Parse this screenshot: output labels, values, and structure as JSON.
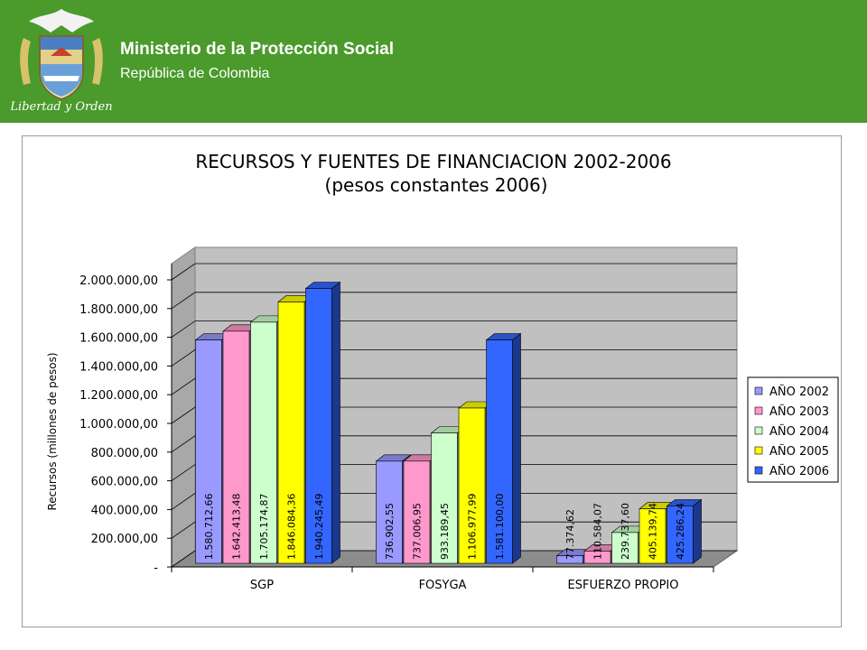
{
  "header": {
    "ministry": "Ministerio de la Protección Social",
    "republic": "República de Colombia",
    "motto": "Libertad y Orden"
  },
  "colors": {
    "header_bg": "#4a9a2c",
    "series": [
      "#9999ff",
      "#ff99cc",
      "#ccffcc",
      "#ffff00",
      "#3366ff"
    ]
  },
  "chart_data": {
    "type": "bar",
    "title": "RECURSOS Y FUENTES DE FINANCIACION 2002-2006",
    "subtitle": "(pesos constantes 2006)",
    "xlabel": "",
    "ylabel": "Recursos (millones de pesos)",
    "ylim": [
      0,
      2000000
    ],
    "yticks": [
      "-",
      "200.000,00",
      "400.000,00",
      "600.000,00",
      "800.000,00",
      "1.000.000,00",
      "1.200.000,00",
      "1.400.000,00",
      "1.600.000,00",
      "1.800.000,00",
      "2.000.000,00"
    ],
    "categories": [
      "SGP",
      "FOSYGA",
      "ESFUERZO PROPIO"
    ],
    "series": [
      {
        "name": "AÑO 2002",
        "values": [
          1580712.66,
          736902.55,
          77374.62
        ],
        "labels": [
          "1.580.712,66",
          "736.902,55",
          "77.374,62"
        ]
      },
      {
        "name": "AÑO 2003",
        "values": [
          1642413.48,
          737006.95,
          110584.07
        ],
        "labels": [
          "1.642.413,48",
          "737.006,95",
          "110.584,07"
        ]
      },
      {
        "name": "AÑO 2004",
        "values": [
          1705174.87,
          933189.45,
          239737.6
        ],
        "labels": [
          "1.705.174,87",
          "933.189,45",
          "239.737,60"
        ]
      },
      {
        "name": "AÑO 2005",
        "values": [
          1846084.36,
          1106977.99,
          405139.74
        ],
        "labels": [
          "1.846.084,36",
          "1.106.977,99",
          "405.139,74"
        ]
      },
      {
        "name": "AÑO 2006",
        "values": [
          1940245.49,
          1581100.0,
          425286.24
        ],
        "labels": [
          "1.940.245,49",
          "1.581.100,00",
          "425.286,24"
        ]
      }
    ],
    "legend": "right",
    "grid": true
  }
}
